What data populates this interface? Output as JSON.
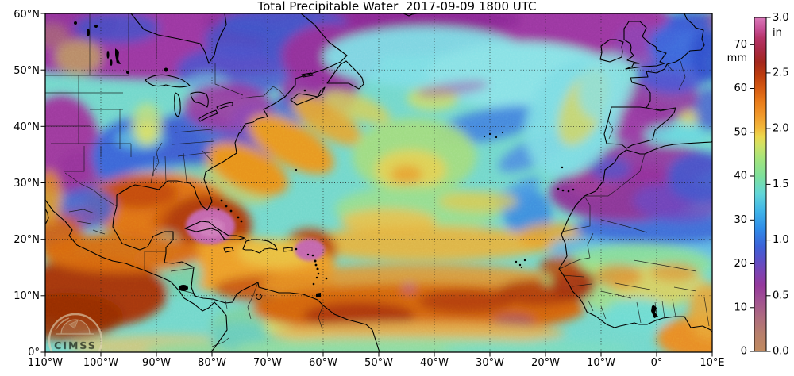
{
  "title": "Total Precipitable Water  2017-09-09 1800 UTC",
  "watermark": {
    "text": "CIMSS"
  },
  "map": {
    "lon_ticks": [
      "110°W",
      "100°W",
      "90°W",
      "80°W",
      "70°W",
      "60°W",
      "50°W",
      "40°W",
      "30°W",
      "20°W",
      "10°W",
      "0°",
      "10°E"
    ],
    "lat_ticks": [
      "0°",
      "10°N",
      "20°N",
      "30°N",
      "40°N",
      "50°N",
      "60°N"
    ]
  },
  "colorbar": {
    "unit_left": "mm",
    "unit_right": "in",
    "mm_ticks": [
      "70",
      "60",
      "50",
      "40",
      "30",
      "20",
      "10",
      "0"
    ],
    "in_ticks": [
      "3.0",
      "2.5",
      "2.0",
      "1.5",
      "1.0",
      "0.5",
      "0.0"
    ],
    "max_mm": 76.2,
    "stops": [
      {
        "v": 0,
        "c": "#c08a5f"
      },
      {
        "v": 4,
        "c": "#b77f6c"
      },
      {
        "v": 8,
        "c": "#ad6a80"
      },
      {
        "v": 12,
        "c": "#a04f93"
      },
      {
        "v": 15,
        "c": "#95399c"
      },
      {
        "v": 18,
        "c": "#7d43b2"
      },
      {
        "v": 21,
        "c": "#5a50c8"
      },
      {
        "v": 24,
        "c": "#3c62d8"
      },
      {
        "v": 28,
        "c": "#2f8ce8"
      },
      {
        "v": 32,
        "c": "#3fb4e8"
      },
      {
        "v": 36,
        "c": "#62d6d8"
      },
      {
        "v": 40,
        "c": "#7ee09b"
      },
      {
        "v": 44,
        "c": "#a4e47c"
      },
      {
        "v": 47,
        "c": "#cfe266"
      },
      {
        "v": 49,
        "c": "#ecd84e"
      },
      {
        "v": 51,
        "c": "#f2b83a"
      },
      {
        "v": 54,
        "c": "#f0972a"
      },
      {
        "v": 57,
        "c": "#e97c1a"
      },
      {
        "v": 60,
        "c": "#d55a12"
      },
      {
        "v": 63,
        "c": "#bc3c0e"
      },
      {
        "v": 66,
        "c": "#a3271d"
      },
      {
        "v": 69,
        "c": "#aa2a48"
      },
      {
        "v": 71.5,
        "c": "#b63468"
      },
      {
        "v": 73.5,
        "c": "#c64e94"
      },
      {
        "v": 76.2,
        "c": "#da79ba"
      }
    ]
  },
  "chart_data": {
    "type": "heatmap",
    "title": "Total Precipitable Water  2017-09-09 1800 UTC",
    "x_ticks": [
      "110°W",
      "100°W",
      "90°W",
      "80°W",
      "70°W",
      "60°W",
      "50°W",
      "40°W",
      "30°W",
      "20°W",
      "10°W",
      "0°",
      "10°E"
    ],
    "y_ticks": [
      "0°",
      "10°N",
      "20°N",
      "30°N",
      "40°N",
      "50°N",
      "60°N"
    ],
    "colorbar_units": [
      "mm",
      "in"
    ],
    "colorbar_range_mm": [
      0,
      76.2
    ],
    "colorbar_range_in": [
      0.0,
      3.0
    ],
    "grid": "10-degree dotted graticule",
    "notable_features": "magenta TPW maxima (>70mm) over Cuba and near 62W/18N; dry purple air over high-latitude Atlantic, Rockies, Sahara and Iberia; moist orange ITCZ band 5-15N"
  }
}
